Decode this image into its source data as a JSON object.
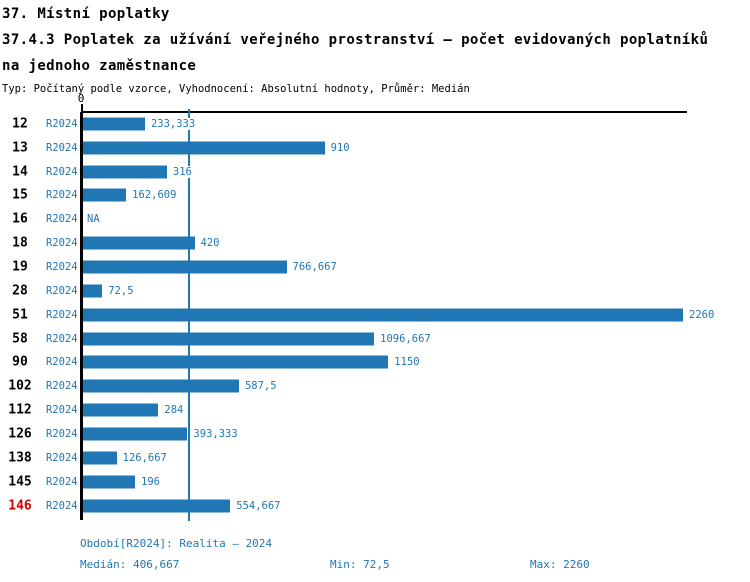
{
  "header": {
    "line1": "37. Místní poplatky",
    "line2": "37.4.3 Poplatek za užívání veřejného prostranství – počet evidovaných poplatníků",
    "line3": "na jednoho zaměstnance",
    "subtitle": "Typ: Počítaný podle vzorce, Vyhodnocení: Absolutní hodnoty, Průměr: Medián"
  },
  "colors": {
    "bar_blue": "#2077b4",
    "highlight_red": "#cc0000",
    "axis_black": "#000000",
    "background": "#ffffff"
  },
  "chart_data": {
    "type": "bar",
    "orientation": "horizontal",
    "title": "37.4.3 Poplatek za užívání veřejného prostranství – počet evidovaných poplatníků na jednoho zaměstnance",
    "xlabel": "",
    "ylabel": "",
    "xlim": [
      0,
      2280
    ],
    "grid": false,
    "legend_position": "none",
    "axis_zero_label": "0",
    "series_label": "R2024",
    "median_value": 406.667,
    "median_line": true,
    "categories": [
      "12",
      "13",
      "14",
      "15",
      "16",
      "18",
      "19",
      "28",
      "51",
      "58",
      "90",
      "102",
      "112",
      "126",
      "138",
      "145",
      "146"
    ],
    "values": [
      233.333,
      910,
      316,
      162.609,
      null,
      420,
      766.667,
      72.5,
      2260,
      1096.667,
      1150,
      587.5,
      284,
      393.333,
      126.667,
      196,
      554.667
    ],
    "rows": [
      {
        "id": "12",
        "series": "R2024",
        "value": 233.333,
        "label": "233,333",
        "highlight": false
      },
      {
        "id": "13",
        "series": "R2024",
        "value": 910,
        "label": "910",
        "highlight": false
      },
      {
        "id": "14",
        "series": "R2024",
        "value": 316,
        "label": "316",
        "highlight": false
      },
      {
        "id": "15",
        "series": "R2024",
        "value": 162.609,
        "label": "162,609",
        "highlight": false
      },
      {
        "id": "16",
        "series": "R2024",
        "value": null,
        "label": "NA",
        "highlight": false
      },
      {
        "id": "18",
        "series": "R2024",
        "value": 420,
        "label": "420",
        "highlight": false
      },
      {
        "id": "19",
        "series": "R2024",
        "value": 766.667,
        "label": "766,667",
        "highlight": false
      },
      {
        "id": "28",
        "series": "R2024",
        "value": 72.5,
        "label": "72,5",
        "highlight": false
      },
      {
        "id": "51",
        "series": "R2024",
        "value": 2260,
        "label": "2260",
        "highlight": false
      },
      {
        "id": "58",
        "series": "R2024",
        "value": 1096.667,
        "label": "1096,667",
        "highlight": false
      },
      {
        "id": "90",
        "series": "R2024",
        "value": 1150,
        "label": "1150",
        "highlight": false
      },
      {
        "id": "102",
        "series": "R2024",
        "value": 587.5,
        "label": "587,5",
        "highlight": false
      },
      {
        "id": "112",
        "series": "R2024",
        "value": 284,
        "label": "284",
        "highlight": false
      },
      {
        "id": "126",
        "series": "R2024",
        "value": 393.333,
        "label": "393,333",
        "highlight": false
      },
      {
        "id": "138",
        "series": "R2024",
        "value": 126.667,
        "label": "126,667",
        "highlight": false
      },
      {
        "id": "145",
        "series": "R2024",
        "value": 196,
        "label": "196",
        "highlight": false
      },
      {
        "id": "146",
        "series": "R2024",
        "value": 554.667,
        "label": "554,667",
        "highlight": true
      }
    ]
  },
  "footer": {
    "period": "Období[R2024]: Realita – 2024",
    "median": "Medián: 406,667",
    "min": "Min: 72,5",
    "max": "Max: 2260"
  }
}
